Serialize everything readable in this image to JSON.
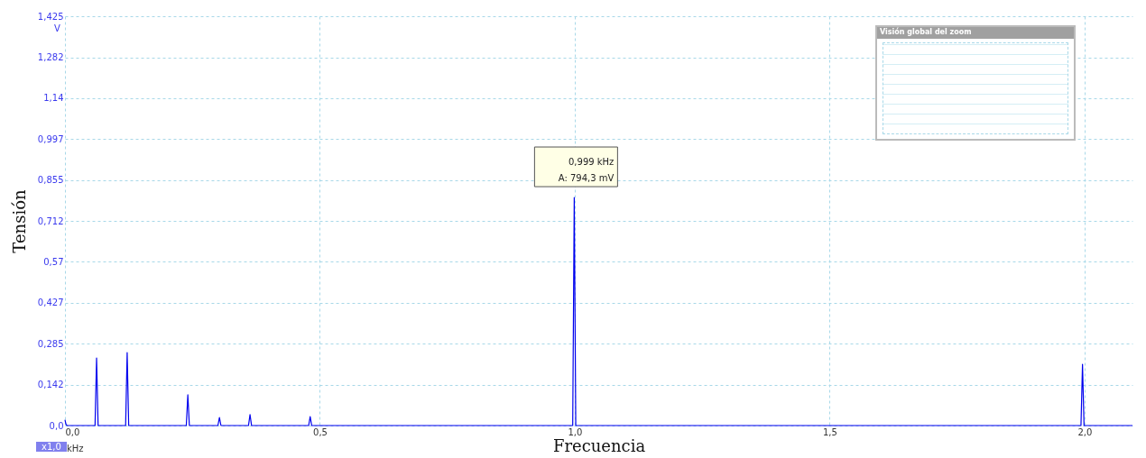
{
  "chart_data": {
    "type": "line",
    "xlabel": "Frecuencia",
    "ylabel": "Tensión",
    "x": [
      0,
      0.002,
      0.004,
      0.059,
      0.062,
      0.065,
      0.119,
      0.122,
      0.125,
      0.238,
      0.241,
      0.244,
      0.3,
      0.303,
      0.306,
      0.36,
      0.363,
      0.366,
      0.478,
      0.481,
      0.484,
      0.996,
      0.999,
      1.002,
      1.993,
      1.996,
      1.999,
      2.094
    ],
    "series": [
      {
        "color": "#0000ee",
        "values": [
          0.02,
          0.004,
          0,
          0,
          0.235,
          0,
          0,
          0.254,
          0,
          0,
          0.107,
          0,
          0,
          0.028,
          0,
          0,
          0.038,
          0,
          0,
          0.031,
          0,
          0,
          0.794,
          0,
          0,
          0.213,
          0,
          0
        ]
      }
    ],
    "xlim": [
      0,
      2.094
    ],
    "ylim": [
      0,
      1.425
    ],
    "xticks": [
      {
        "value": 0,
        "label": "0,0"
      },
      {
        "value": 0.5,
        "label": "0,5"
      },
      {
        "value": 1,
        "label": "1,0"
      },
      {
        "value": 1.5,
        "label": "1,5"
      },
      {
        "value": 2,
        "label": "2,0"
      }
    ],
    "yticks": [
      {
        "value": 0,
        "label": "0,0"
      },
      {
        "value": 0.142,
        "label": "0,142"
      },
      {
        "value": 0.285,
        "label": "0,285"
      },
      {
        "value": 0.427,
        "label": "0,427"
      },
      {
        "value": 0.57,
        "label": "0,57"
      },
      {
        "value": 0.712,
        "label": "0,712"
      },
      {
        "value": 0.855,
        "label": "0,855"
      },
      {
        "value": 0.997,
        "label": "0,997"
      },
      {
        "value": 1.14,
        "label": "1,14"
      },
      {
        "value": 1.282,
        "label": "1,282"
      },
      {
        "value": 1.425,
        "label": "1,425"
      }
    ],
    "grid": true,
    "line_style": "solid",
    "marker": "none",
    "annotations": [
      "V",
      "kHz",
      "x1,0",
      "Visión global del zoom",
      "0,999 kHz",
      {
        "text": "A: 794,3 mV",
        "x": 0.999,
        "y": 0.794
      }
    ]
  }
}
